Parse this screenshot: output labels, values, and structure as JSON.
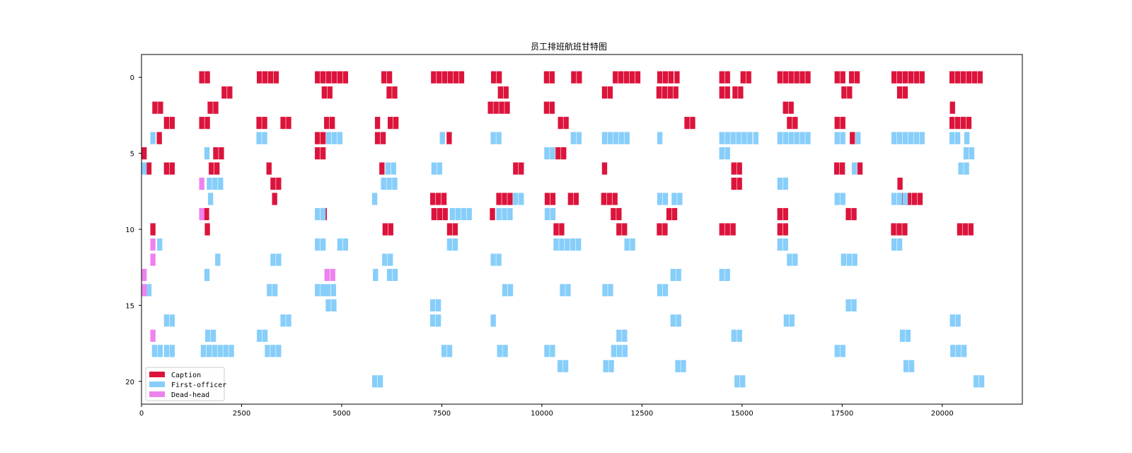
{
  "chart_data": {
    "type": "gantt",
    "title": "员工排班航班甘特图",
    "xlabel": "",
    "ylabel": "",
    "xlim": [
      0,
      22000
    ],
    "ylim": [
      21.5,
      -1.5
    ],
    "xticks": [
      0,
      2500,
      5000,
      7500,
      10000,
      12500,
      15000,
      17500,
      20000
    ],
    "yticks": [
      0,
      5,
      10,
      15,
      20
    ],
    "grid": false,
    "legend_placement": "lower-left",
    "colors": {
      "Caption": "#dc143c",
      "First-officer": "#87cefa",
      "Dead-head": "#ee82ee"
    },
    "legend": [
      "Caption",
      "First-officer",
      "Dead-head"
    ],
    "series": [
      {
        "row": 0,
        "role": "Caption",
        "starts": [
          1440,
          1580,
          2880,
          3020,
          3160,
          3300,
          4330,
          4470,
          4610,
          4750,
          4890,
          5030,
          5990,
          6130,
          7230,
          7370,
          7510,
          7650,
          7790,
          7930,
          8730,
          8870,
          10050,
          10190,
          10730,
          10870,
          11770,
          11910,
          12050,
          12190,
          12330,
          12880,
          13020,
          13160,
          13310,
          14430,
          14570,
          14960,
          15100,
          15880,
          16020,
          16160,
          16300,
          16440,
          16580,
          17310,
          17450,
          17670,
          17810,
          18730,
          18870,
          19010,
          19150,
          19290,
          19430,
          20180,
          20320,
          20460,
          20600,
          20740,
          20880
        ]
      },
      {
        "row": 1,
        "role": "Caption",
        "starts": [
          2000,
          2140,
          4500,
          4640,
          6120,
          6260,
          8900,
          9040,
          11500,
          11640,
          12860,
          13000,
          13140,
          13280,
          14430,
          14570,
          14760,
          14900,
          17480,
          17620,
          18870,
          19010
        ]
      },
      {
        "row": 2,
        "role": "Caption",
        "starts": [
          270,
          410,
          1650,
          1790,
          8650,
          8790,
          8930,
          9070,
          10050,
          10190,
          16020,
          16160,
          20190
        ]
      },
      {
        "row": 3,
        "role": "Caption",
        "starts": [
          560,
          700,
          1440,
          1580,
          2870,
          3010,
          3470,
          3610,
          4560,
          4700,
          5830,
          6150,
          6290,
          10400,
          10540,
          13560,
          13700,
          16120,
          16260,
          17310,
          17450,
          20180,
          20320,
          20460,
          20600
        ]
      },
      {
        "row": 4,
        "role": "Caption",
        "starts": [
          380,
          4330,
          4470,
          5830,
          5970,
          7620,
          17690
        ]
      },
      {
        "row": 4,
        "role": "First-officer",
        "starts": [
          220,
          2870,
          3010,
          4610,
          4750,
          4890,
          7450,
          8720,
          8860,
          10720,
          10860,
          11500,
          11640,
          11780,
          11920,
          12060,
          12880,
          14430,
          14570,
          14710,
          14850,
          14990,
          15130,
          15280,
          15880,
          16020,
          16160,
          16300,
          16440,
          16580,
          17310,
          17450,
          17830,
          18730,
          18870,
          19010,
          19150,
          19290,
          19430,
          20180,
          20320,
          20550
        ]
      },
      {
        "row": 5,
        "role": "Caption",
        "starts": [
          0,
          1790,
          1930,
          4330,
          4470,
          10340,
          10480
        ]
      },
      {
        "row": 5,
        "role": "First-officer",
        "starts": [
          1570,
          10060,
          10200,
          14430,
          14570,
          20530,
          20670
        ]
      },
      {
        "row": 6,
        "role": "Caption",
        "starts": [
          120,
          560,
          700,
          1680,
          1820,
          3120,
          5940,
          9280,
          9420,
          11500,
          17300,
          17440,
          17880
        ]
      },
      {
        "row": 6,
        "role": "First-officer",
        "starts": [
          0,
          6090,
          6230,
          7240,
          7380,
          17740,
          20400,
          20540
        ]
      },
      {
        "row": 6,
        "role": "Caption",
        "starts": [
          14730,
          14870
        ]
      },
      {
        "row": 7,
        "role": "Caption",
        "starts": [
          3220,
          3360,
          14730,
          14870,
          18880
        ]
      },
      {
        "row": 7,
        "role": "First-officer",
        "starts": [
          1630,
          1770,
          1910,
          5980,
          6120,
          6260,
          15880,
          16020
        ]
      },
      {
        "row": 7,
        "role": "Dead-head",
        "starts": [
          1440
        ]
      },
      {
        "row": 8,
        "role": "Caption",
        "starts": [
          3260,
          7210,
          7350,
          7490,
          8860,
          9000,
          9140,
          10070,
          10210,
          10650,
          10790,
          11480,
          11620,
          11760,
          18960,
          19100,
          19240,
          19380
        ]
      },
      {
        "row": 8,
        "role": "First-officer",
        "starts": [
          1660,
          5760,
          9280,
          9420,
          12880,
          13020,
          13240,
          13380,
          17310,
          17450,
          18730,
          18870,
          19010
        ]
      },
      {
        "row": 9,
        "role": "Caption",
        "starts": [
          1560,
          4500,
          7240,
          7380,
          7520,
          8700,
          11720,
          11860,
          13110,
          13250,
          15880,
          16020,
          17590,
          17730
        ]
      },
      {
        "row": 9,
        "role": "First-officer",
        "starts": [
          4330,
          4470,
          7700,
          7840,
          7980,
          8120,
          8860,
          9000,
          9140,
          10070,
          10210
        ]
      },
      {
        "row": 9,
        "role": "Dead-head",
        "starts": [
          1440
        ]
      },
      {
        "row": 10,
        "role": "Caption",
        "starts": [
          220,
          1580,
          6020,
          6160,
          7630,
          7770,
          10290,
          10430,
          11860,
          12000,
          12870,
          13010,
          14430,
          14570,
          14710,
          15880,
          16020,
          18720,
          18860,
          19000,
          20370,
          20510,
          20650
        ]
      },
      {
        "row": 11,
        "role": "First-officer",
        "starts": [
          390,
          4330,
          4470,
          4890,
          5030,
          7630,
          7770,
          10290,
          10430,
          10570,
          10710,
          10850,
          12060,
          12200,
          15880,
          16020,
          18730,
          18870
        ]
      },
      {
        "row": 11,
        "role": "Dead-head",
        "starts": [
          220
        ]
      },
      {
        "row": 12,
        "role": "First-officer",
        "starts": [
          1840,
          3220,
          3360,
          6010,
          6150,
          8720,
          8860,
          16120,
          16260,
          17470,
          17610,
          17750
        ]
      },
      {
        "row": 12,
        "role": "Dead-head",
        "starts": [
          220
        ]
      },
      {
        "row": 13,
        "role": "First-officer",
        "starts": [
          1570,
          5780,
          6130,
          6270,
          13210,
          13350,
          14430,
          14570
        ]
      },
      {
        "row": 13,
        "role": "Dead-head",
        "starts": [
          0,
          4570,
          4710
        ]
      },
      {
        "row": 14,
        "role": "First-officer",
        "starts": [
          120,
          3130,
          3270,
          4330,
          4470,
          4590,
          4730,
          9010,
          9150,
          10450,
          10590,
          11510,
          11650,
          12880,
          13020
        ]
      },
      {
        "row": 14,
        "role": "Dead-head",
        "starts": [
          0
        ]
      },
      {
        "row": 15,
        "role": "First-officer",
        "starts": [
          4600,
          4740,
          7210,
          7350,
          17590,
          17730
        ]
      },
      {
        "row": 16,
        "role": "First-officer",
        "starts": [
          560,
          700,
          3470,
          3610,
          7210,
          7350,
          8720,
          13210,
          13350,
          16040,
          16180,
          20190,
          20330
        ]
      },
      {
        "row": 17,
        "role": "First-officer",
        "starts": [
          1590,
          1730,
          2880,
          3020,
          11860,
          12000,
          14730,
          14870,
          18940,
          19080
        ]
      },
      {
        "row": 17,
        "role": "Dead-head",
        "starts": [
          220
        ]
      },
      {
        "row": 18,
        "role": "First-officer",
        "starts": [
          260,
          400,
          560,
          700,
          1480,
          1620,
          1760,
          1900,
          2040,
          2180,
          3080,
          3220,
          3360,
          7490,
          7630,
          8880,
          9020,
          10060,
          10200,
          11730,
          11870,
          12010,
          17310,
          17450,
          20200,
          20340,
          20480
        ]
      },
      {
        "row": 19,
        "role": "First-officer",
        "starts": [
          10390,
          10530,
          11530,
          11670,
          13330,
          13470,
          19030,
          19170
        ]
      },
      {
        "row": 20,
        "role": "First-officer",
        "starts": [
          5760,
          5900,
          14810,
          14950,
          20780,
          20920
        ]
      }
    ],
    "bar_duration": 130
  }
}
